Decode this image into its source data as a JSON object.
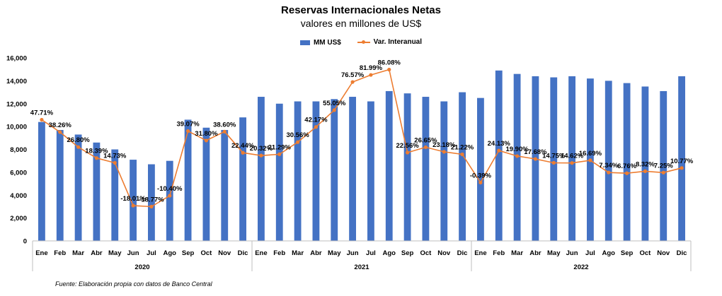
{
  "chart_data": {
    "type": "bar",
    "title": "Reservas Internacionales Netas",
    "subtitle": "valores en millones de US$",
    "categories": [
      "Ene",
      "Feb",
      "Mar",
      "Abr",
      "May",
      "Jun",
      "Jul",
      "Ago",
      "Sep",
      "Oct",
      "Nov",
      "Dic",
      "Ene",
      "Feb",
      "Mar",
      "Abr",
      "May",
      "Jun",
      "Jul",
      "Ago",
      "Sep",
      "Oct",
      "Nov",
      "Dic",
      "Ene",
      "Feb",
      "Mar",
      "Abr",
      "May",
      "Jun",
      "Jul",
      "Ago",
      "Sep",
      "Oct",
      "Nov",
      "Dic"
    ],
    "groups": [
      {
        "label": "2020",
        "count": 12
      },
      {
        "label": "2021",
        "count": 12
      },
      {
        "label": "2022",
        "count": 12
      }
    ],
    "ylim": [
      0,
      16000
    ],
    "yticks": [
      "0",
      "2,000",
      "4,000",
      "6,000",
      "8,000",
      "10,000",
      "12,000",
      "14,000",
      "16,000"
    ],
    "grid": false,
    "legend_position": "top",
    "series": [
      {
        "name": "MM US$",
        "type": "bar",
        "color": "#4472C4",
        "values": [
          10400,
          9700,
          9300,
          8600,
          8000,
          7100,
          6700,
          7000,
          10600,
          9900,
          9700,
          10800,
          12600,
          12000,
          12200,
          12200,
          12400,
          12600,
          12200,
          13100,
          12900,
          12600,
          12200,
          13000,
          12500,
          14900,
          14600,
          14400,
          14300,
          14400,
          14200,
          14000,
          13800,
          13500,
          13100,
          14400
        ]
      },
      {
        "name": "Var. Interanual",
        "type": "line",
        "color": "#ED7D31",
        "values": [
          47.71,
          38.26,
          26.8,
          18.39,
          14.73,
          -18.01,
          -18.77,
          -10.4,
          39.07,
          31.8,
          38.6,
          22.44,
          20.32,
          21.29,
          30.56,
          42.17,
          55.05,
          76.57,
          81.99,
          86.08,
          22.56,
          26.65,
          23.18,
          21.22,
          -0.39,
          24.13,
          19.9,
          17.68,
          14.75,
          14.62,
          16.69,
          7.34,
          6.76,
          8.32,
          7.25,
          10.77
        ],
        "labels": [
          "47.71%",
          "38.26%",
          "26.80%",
          "18.39%",
          "14.73%",
          "-18.01%",
          "-18.77%",
          "-10.40%",
          "39.07%",
          "31.80%",
          "38.60%",
          "22.44%",
          "20.32%",
          "21.29%",
          "30.56%",
          "42.17%",
          "55.05%",
          "76.57%",
          "81.99%",
          "86.08%",
          "22.56%",
          "26.65%",
          "23.18%",
          "21.22%",
          "-0.39%",
          "24.13%",
          "19.90%",
          "17.68%",
          "14.75%",
          "14.62%",
          "16.69%",
          "7.34%",
          "6.76%",
          "8.32%",
          "7.25%",
          "10.77%"
        ]
      }
    ],
    "source": "Fuente: Elaboración propia con datos de Banco Central"
  }
}
